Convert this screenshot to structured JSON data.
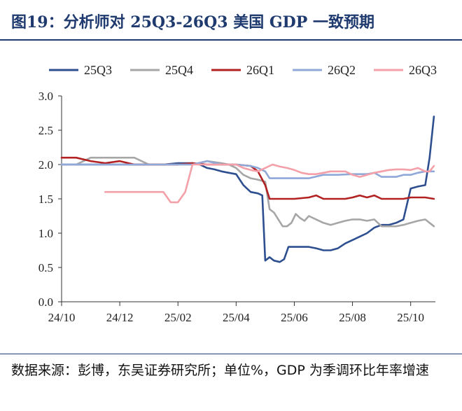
{
  "title": "图19：分析师对 25Q3-26Q3 美国 GDP 一致预期",
  "note": "数据来源：彭博，东吴证券研究所；单位%，GDP 为季调环比年率增速",
  "colors": {
    "title": "#1f3a6e",
    "axis": "#333333"
  },
  "chart_data": {
    "type": "line",
    "title": "",
    "xlabel": "",
    "ylabel": "",
    "x_range": [
      0,
      25.7
    ],
    "ylim": [
      0,
      3.0
    ],
    "yticks": [
      0.0,
      0.5,
      1.0,
      1.5,
      2.0,
      2.5,
      3.0
    ],
    "ytick_labels": [
      "0.0",
      "0.5",
      "1.0",
      "1.5",
      "2.0",
      "2.5",
      "3.0"
    ],
    "xticks": [
      0,
      4,
      8,
      12,
      16,
      20,
      24
    ],
    "xtick_labels": [
      "24/10",
      "24/12",
      "25/02",
      "25/04",
      "25/06",
      "25/08",
      "25/10"
    ],
    "x_unit": "weeks since 24/10 tick, two weeks per step",
    "legend_position": "top",
    "series": [
      {
        "name": "25Q3",
        "color": "#2e4f8f",
        "x": [
          0,
          1.5,
          3,
          5,
          7,
          8,
          9,
          9.5,
          10,
          10.5,
          11,
          11.5,
          12,
          12.5,
          13,
          13.5,
          13.8,
          14,
          14.3,
          14.6,
          15,
          15.3,
          15.6,
          16,
          16.5,
          17,
          17.5,
          18,
          18.5,
          19,
          19.5,
          20,
          20.5,
          21,
          21.5,
          22,
          22.5,
          23,
          23.5,
          24,
          24.5,
          25,
          25.3,
          25.6
        ],
        "values": [
          2.0,
          2.0,
          2.0,
          2.0,
          2.0,
          2.02,
          2.02,
          2.0,
          1.95,
          1.93,
          1.9,
          1.88,
          1.86,
          1.7,
          1.6,
          1.58,
          1.55,
          0.6,
          0.65,
          0.6,
          0.58,
          0.62,
          0.8,
          0.8,
          0.8,
          0.8,
          0.78,
          0.75,
          0.75,
          0.78,
          0.85,
          0.9,
          0.95,
          1.0,
          1.08,
          1.12,
          1.12,
          1.15,
          1.2,
          1.65,
          1.68,
          1.7,
          2.1,
          2.7
        ]
      },
      {
        "name": "25Q4",
        "color": "#a6a6a6",
        "x": [
          0,
          1,
          2,
          3,
          4,
          5,
          6,
          8,
          9,
          10,
          11,
          11.5,
          12,
          12.5,
          13,
          13.5,
          14,
          14.3,
          14.6,
          14.9,
          15.2,
          15.5,
          15.8,
          16.1,
          16.4,
          16.7,
          17,
          17.5,
          18,
          18.5,
          19,
          19.5,
          20,
          20.5,
          21,
          21.5,
          22,
          22.5,
          23,
          23.5,
          24,
          24.5,
          25,
          25.6
        ],
        "values": [
          2.0,
          2.0,
          2.1,
          2.1,
          2.1,
          2.1,
          2.0,
          2.0,
          2.0,
          2.05,
          2.02,
          2.0,
          1.95,
          1.85,
          1.8,
          1.78,
          1.75,
          1.35,
          1.3,
          1.2,
          1.1,
          1.1,
          1.15,
          1.28,
          1.22,
          1.18,
          1.25,
          1.2,
          1.15,
          1.12,
          1.15,
          1.18,
          1.2,
          1.2,
          1.18,
          1.2,
          1.1,
          1.1,
          1.1,
          1.12,
          1.15,
          1.18,
          1.2,
          1.1
        ]
      },
      {
        "name": "26Q1",
        "color": "#b22222",
        "x": [
          0,
          1,
          2,
          3,
          4,
          5,
          6,
          8,
          9,
          10,
          11,
          12,
          13,
          13.5,
          14,
          14.3,
          14.6,
          15,
          16,
          17,
          17.5,
          18,
          18.5,
          19,
          19.5,
          20,
          20.5,
          21,
          21.5,
          22,
          22.5,
          23,
          23.5,
          24,
          24.5,
          25,
          25.6
        ],
        "values": [
          2.1,
          2.1,
          2.05,
          2.02,
          2.05,
          2.0,
          2.0,
          2.0,
          2.02,
          2.0,
          2.0,
          2.0,
          1.98,
          1.9,
          1.7,
          1.5,
          1.5,
          1.5,
          1.5,
          1.52,
          1.55,
          1.5,
          1.5,
          1.5,
          1.5,
          1.52,
          1.55,
          1.52,
          1.55,
          1.5,
          1.5,
          1.5,
          1.5,
          1.52,
          1.52,
          1.52,
          1.5
        ]
      },
      {
        "name": "26Q2",
        "color": "#8fa8d8",
        "x": [
          0,
          2,
          4,
          6,
          8,
          9,
          10,
          11,
          12,
          13,
          13.5,
          14,
          14.3,
          15,
          16,
          17,
          18,
          19,
          20,
          21,
          21.5,
          22,
          22.5,
          23,
          23.5,
          24,
          24.5,
          25,
          25.6
        ],
        "values": [
          2.0,
          2.0,
          2.0,
          2.0,
          2.0,
          2.0,
          2.05,
          2.0,
          2.0,
          1.98,
          1.95,
          1.9,
          1.8,
          1.8,
          1.8,
          1.8,
          1.85,
          1.85,
          1.86,
          1.86,
          1.88,
          1.82,
          1.82,
          1.82,
          1.85,
          1.85,
          1.88,
          1.9,
          1.9
        ]
      },
      {
        "name": "26Q3",
        "color": "#f4a0a8",
        "x": [
          3,
          4,
          5,
          6,
          7,
          7.5,
          8,
          8.5,
          9,
          10,
          11,
          12,
          12.5,
          13,
          13.5,
          14,
          14.5,
          15,
          15.5,
          16,
          16.5,
          17,
          17.5,
          18,
          18.5,
          19,
          19.5,
          20,
          20.5,
          21,
          21.5,
          22,
          22.5,
          23,
          23.5,
          24,
          24.5,
          25,
          25.3,
          25.6
        ],
        "values": [
          1.6,
          1.6,
          1.6,
          1.6,
          1.6,
          1.45,
          1.45,
          1.6,
          2.0,
          2.0,
          2.0,
          2.0,
          1.95,
          1.92,
          1.9,
          1.95,
          2.0,
          1.97,
          1.95,
          1.92,
          1.88,
          1.86,
          1.86,
          1.88,
          1.9,
          1.9,
          1.9,
          1.85,
          1.82,
          1.85,
          1.88,
          1.9,
          1.92,
          1.93,
          1.93,
          1.92,
          1.95,
          1.9,
          1.9,
          1.98
        ]
      }
    ]
  }
}
